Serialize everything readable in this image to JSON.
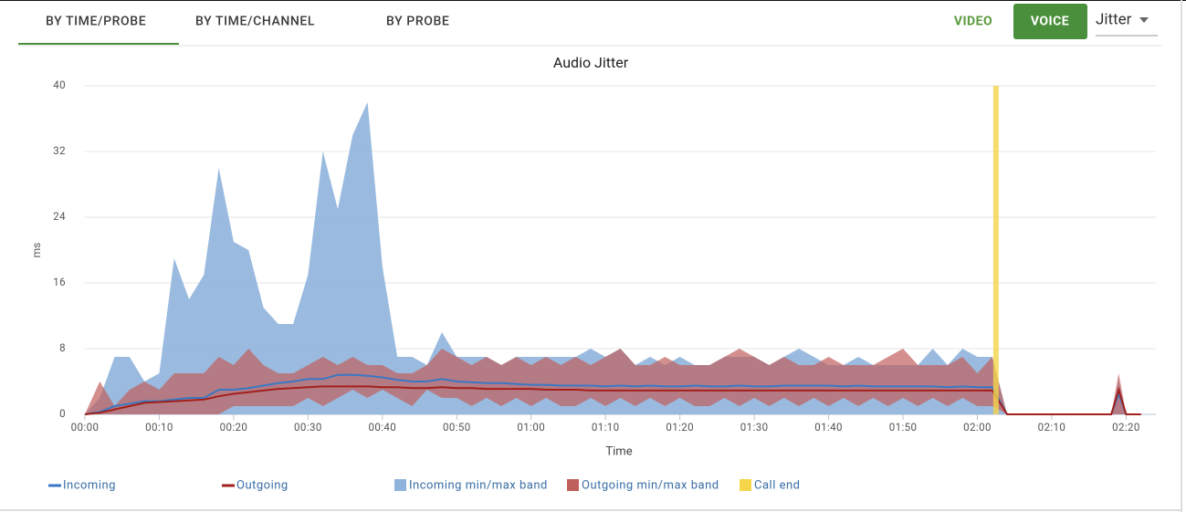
{
  "tabs": [
    "BY TIME/PROBE",
    "BY TIME/CHANNEL",
    "BY PROBE"
  ],
  "media": [
    "VIDEO",
    "VOICE"
  ],
  "metric": "Jitter",
  "chart_data": {
    "type": "line",
    "title": "Audio Jitter",
    "y_label": "ms",
    "x_label": "Time",
    "x": [
      0,
      2,
      4,
      6,
      8,
      10,
      12,
      14,
      16,
      18,
      20,
      22,
      24,
      26,
      28,
      30,
      32,
      34,
      36,
      38,
      40,
      42,
      44,
      46,
      48,
      50,
      52,
      54,
      56,
      58,
      60,
      62,
      64,
      66,
      68,
      70,
      72,
      74,
      76,
      78,
      80,
      82,
      84,
      86,
      88,
      90,
      92,
      94,
      96,
      98,
      100,
      102,
      104,
      106,
      108,
      110,
      112,
      114,
      116,
      118,
      120,
      122,
      124,
      130,
      136,
      138,
      139,
      140,
      142
    ],
    "series": [
      {
        "name": "Incoming",
        "kind": "line",
        "color": "#3a78c3",
        "values": [
          0,
          0.3,
          1,
          1.3,
          1.6,
          1.6,
          1.8,
          2,
          2,
          3,
          3,
          3.2,
          3.5,
          3.8,
          4,
          4.3,
          4.3,
          4.8,
          4.8,
          4.7,
          4.5,
          4.2,
          4,
          4,
          4.3,
          4,
          3.9,
          3.8,
          3.8,
          3.7,
          3.6,
          3.6,
          3.5,
          3.5,
          3.5,
          3.4,
          3.5,
          3.4,
          3.5,
          3.4,
          3.4,
          3.5,
          3.4,
          3.4,
          3.5,
          3.4,
          3.4,
          3.5,
          3.5,
          3.5,
          3.5,
          3.4,
          3.5,
          3.4,
          3.4,
          3.4,
          3.4,
          3.4,
          3.3,
          3.4,
          3.3,
          3.3,
          0,
          0,
          0,
          0,
          2.5,
          0,
          0
        ]
      },
      {
        "name": "Outgoing",
        "kind": "line",
        "color": "#a3201c",
        "values": [
          0,
          0.2,
          0.6,
          1,
          1.4,
          1.5,
          1.6,
          1.7,
          1.8,
          2.2,
          2.5,
          2.7,
          2.9,
          3.1,
          3.2,
          3.3,
          3.4,
          3.4,
          3.4,
          3.4,
          3.3,
          3.3,
          3.2,
          3.2,
          3.3,
          3.2,
          3.2,
          3.1,
          3.1,
          3.1,
          3.1,
          3,
          3,
          3,
          2.9,
          2.9,
          2.9,
          2.9,
          2.9,
          2.9,
          2.9,
          2.9,
          2.9,
          2.9,
          2.9,
          2.9,
          2.9,
          2.9,
          2.9,
          2.9,
          2.9,
          2.9,
          2.9,
          2.9,
          2.9,
          2.9,
          2.9,
          2.9,
          2.9,
          2.9,
          2.9,
          2.9,
          0,
          0,
          0,
          0,
          3,
          0,
          0
        ]
      },
      {
        "name": "Incoming min/max band",
        "kind": "band",
        "color": "#8fb4dc",
        "min": [
          0,
          0,
          0,
          0,
          0,
          0,
          0,
          0,
          0,
          0,
          0,
          0,
          0,
          0,
          0,
          0,
          0,
          0,
          0,
          0,
          0,
          0,
          0,
          0,
          0,
          0,
          0,
          0,
          0,
          0,
          0,
          0,
          0,
          0,
          0,
          0,
          0,
          0,
          0,
          0,
          0,
          0,
          0,
          0,
          0,
          0,
          0,
          0,
          0,
          0,
          0,
          0,
          0,
          0,
          0,
          0,
          0,
          0,
          0,
          0,
          0,
          0,
          0,
          0,
          0,
          0,
          0,
          0,
          0
        ],
        "max": [
          0,
          2,
          7,
          7,
          4,
          5,
          19,
          14,
          17,
          30,
          21,
          20,
          13,
          11,
          11,
          17,
          32,
          25,
          34,
          38,
          18,
          7,
          7,
          6,
          10,
          7,
          7,
          7,
          6,
          7,
          7,
          7,
          7,
          7,
          8,
          7,
          8,
          6,
          7,
          6,
          7,
          6,
          6,
          7,
          7,
          7,
          6,
          7,
          8,
          7,
          6,
          6,
          7,
          6,
          6,
          6,
          6,
          8,
          6,
          8,
          7,
          7,
          0,
          0,
          0,
          0,
          4,
          0,
          0
        ]
      },
      {
        "name": "Outgoing min/max band",
        "kind": "band",
        "color": "#c0605c",
        "min": [
          0,
          0,
          0,
          0,
          0,
          0,
          0,
          0,
          0,
          0,
          1,
          1,
          1,
          1,
          1,
          2,
          1,
          2,
          3,
          2,
          3,
          2,
          1,
          3,
          2,
          2,
          1,
          2,
          1,
          2,
          1,
          2,
          1,
          1,
          2,
          1,
          2,
          1,
          2,
          1,
          2,
          1,
          1,
          2,
          1,
          2,
          1,
          2,
          1,
          2,
          1,
          2,
          1,
          2,
          1,
          2,
          1,
          2,
          1,
          2,
          1,
          1,
          0,
          0,
          0,
          0,
          0,
          0,
          0
        ],
        "max": [
          0,
          4,
          1,
          3,
          4,
          3,
          5,
          5,
          5,
          7,
          6,
          8,
          6,
          5,
          5,
          6,
          7,
          6,
          7,
          6,
          6,
          5,
          5,
          6,
          8,
          7,
          6,
          7,
          6,
          7,
          6,
          7,
          6,
          7,
          6,
          7,
          8,
          6,
          6,
          7,
          6,
          6,
          6,
          7,
          8,
          7,
          6,
          7,
          6,
          6,
          7,
          6,
          6,
          6,
          7,
          8,
          6,
          6,
          6,
          7,
          5,
          7,
          0,
          0,
          0,
          0,
          5,
          0,
          0
        ]
      },
      {
        "name": "Call end",
        "kind": "marker",
        "color": "#f5d54a",
        "at": 122.5
      }
    ],
    "xlim": [
      0,
      144
    ],
    "ylim": [
      0,
      40
    ],
    "yticks": [
      0,
      8,
      16,
      24,
      32,
      40
    ],
    "xticks": [
      {
        "value": 0,
        "label": "00:00"
      },
      {
        "value": 10,
        "label": "00:10"
      },
      {
        "value": 20,
        "label": "00:20"
      },
      {
        "value": 30,
        "label": "00:30"
      },
      {
        "value": 40,
        "label": "00:40"
      },
      {
        "value": 50,
        "label": "00:50"
      },
      {
        "value": 60,
        "label": "01:00"
      },
      {
        "value": 70,
        "label": "01:10"
      },
      {
        "value": 80,
        "label": "01:20"
      },
      {
        "value": 90,
        "label": "01:30"
      },
      {
        "value": 100,
        "label": "01:40"
      },
      {
        "value": 110,
        "label": "01:50"
      },
      {
        "value": 120,
        "label": "02:00"
      },
      {
        "value": 130,
        "label": "02:10"
      },
      {
        "value": 140,
        "label": "02:20"
      }
    ],
    "grid": true,
    "legend": "bottom"
  }
}
